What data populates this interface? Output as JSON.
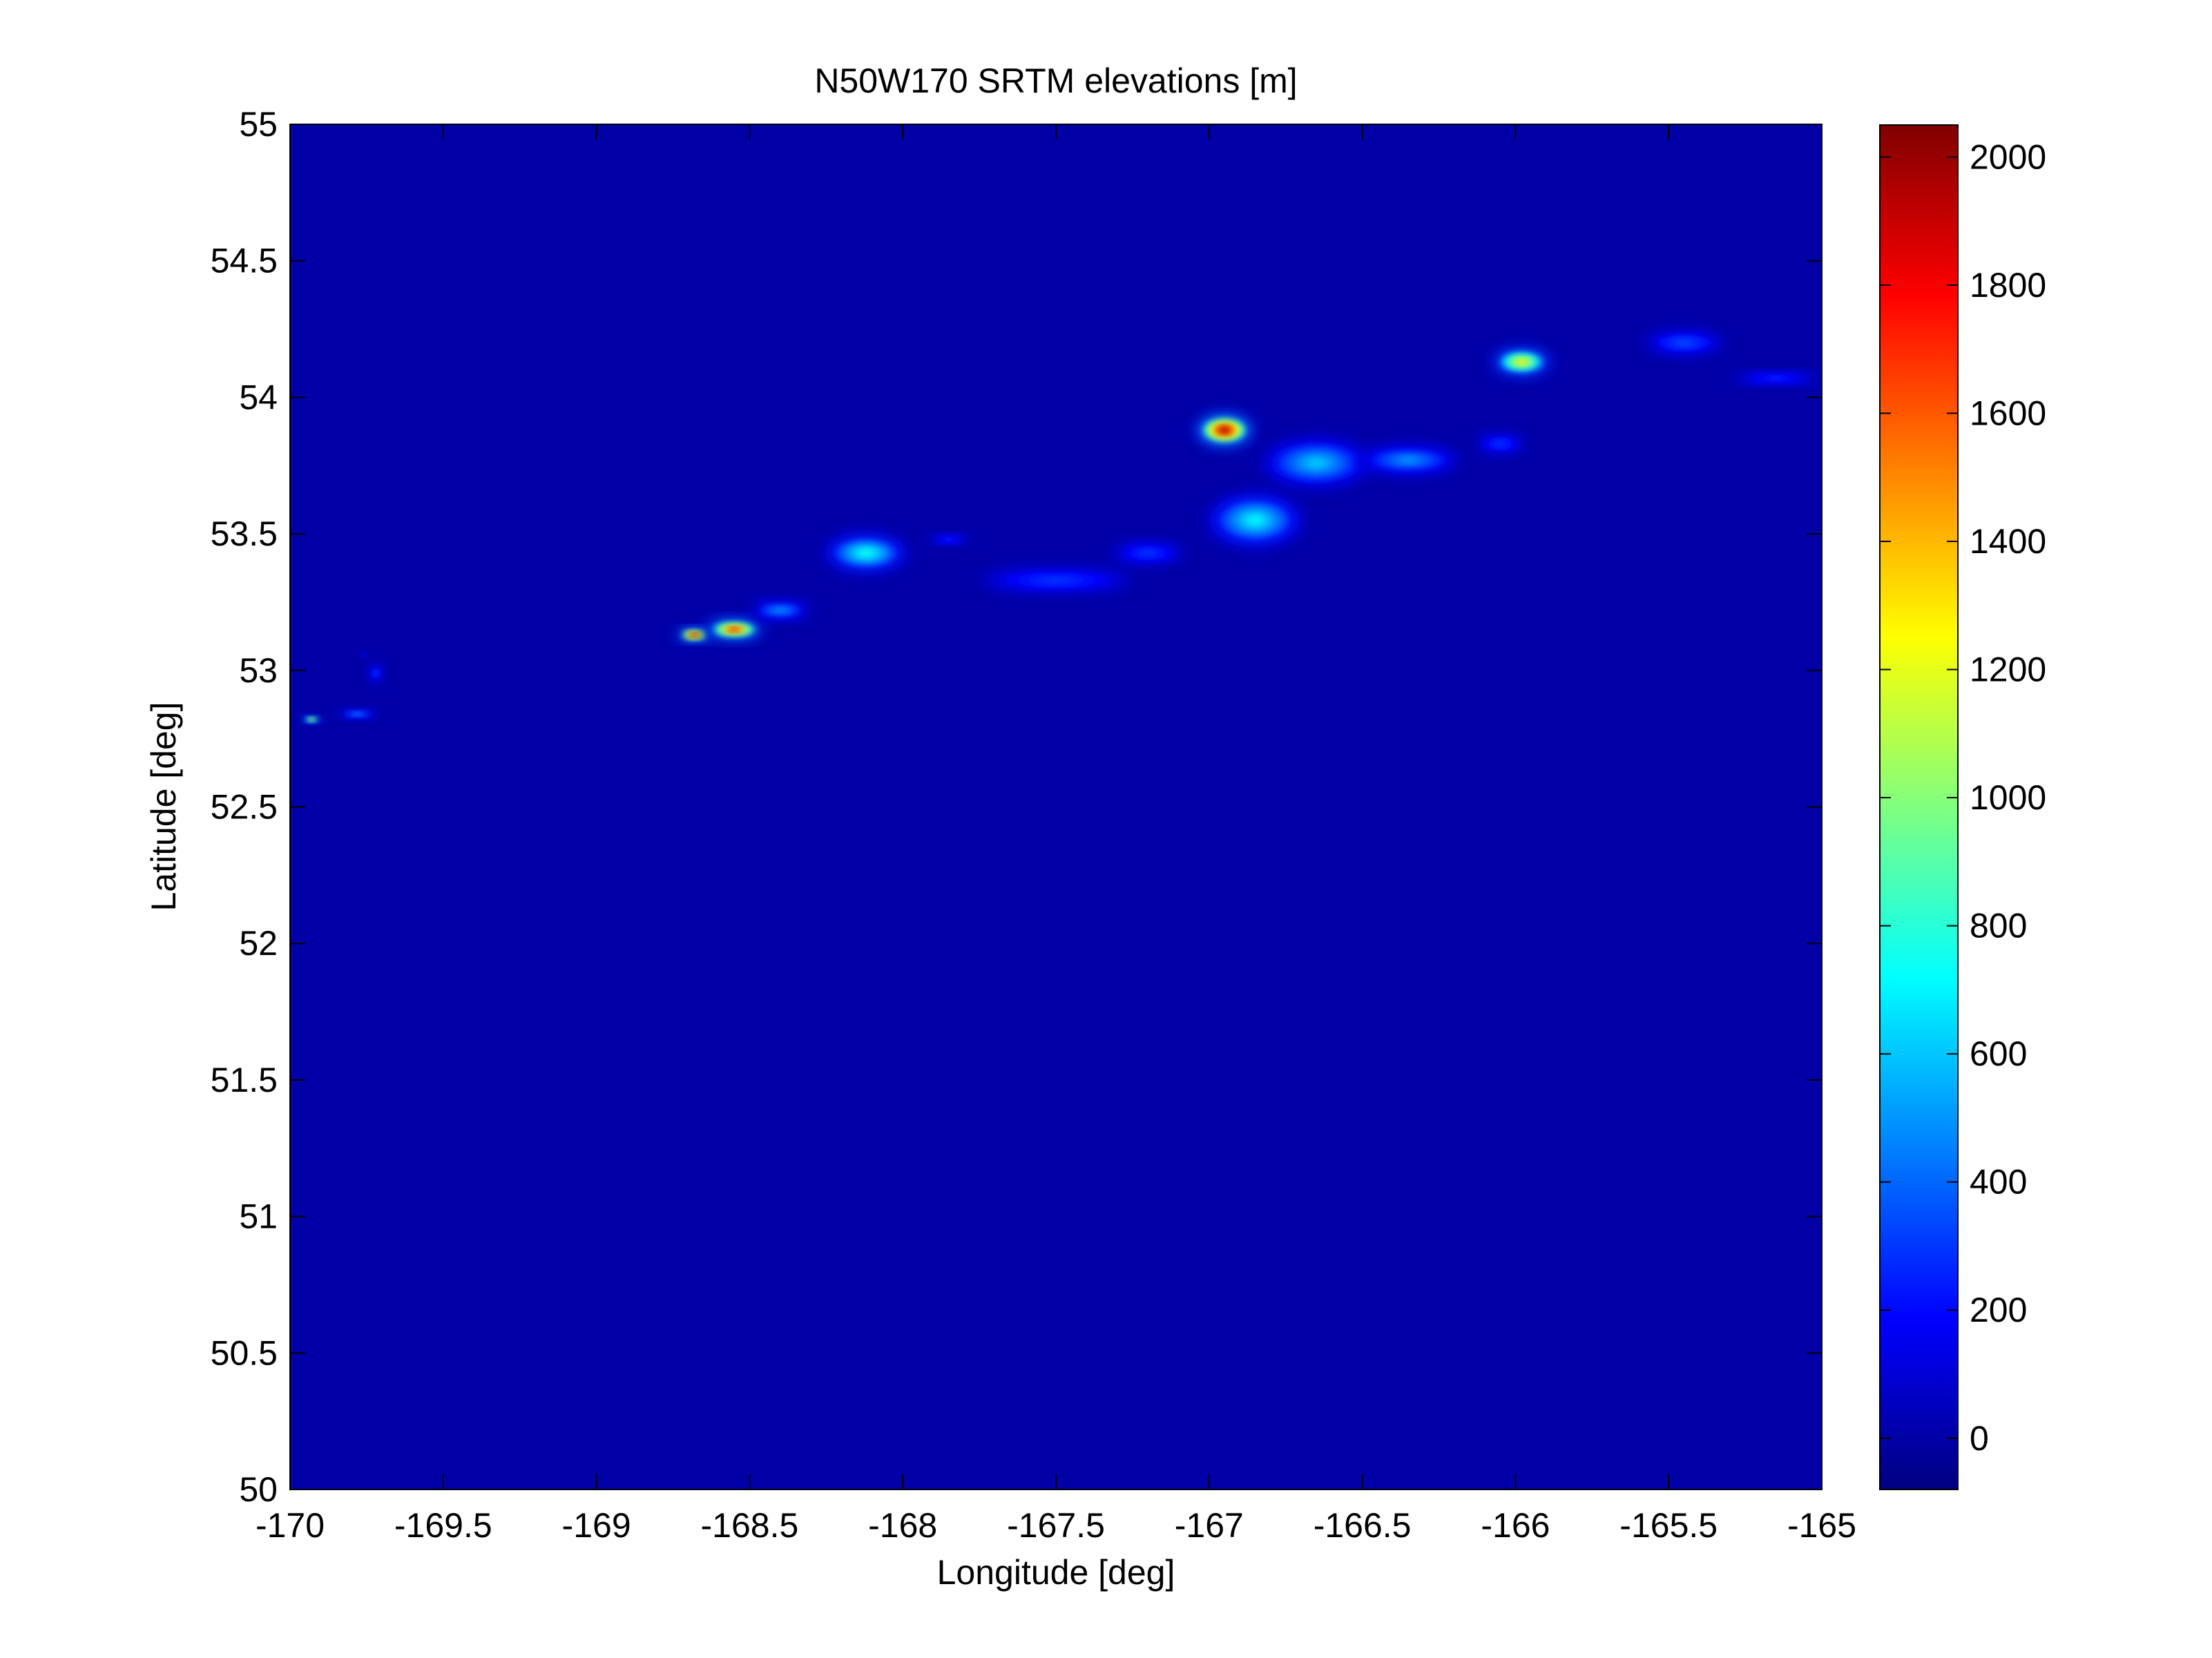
{
  "chart_data": {
    "type": "heatmap",
    "title": "N50W170 SRTM elevations [m]",
    "xlabel": "Longitude [deg]",
    "ylabel": "Latitude [deg]",
    "xlim": [
      -170,
      -165
    ],
    "ylim": [
      50,
      55
    ],
    "x_ticks": [
      -170,
      -169.5,
      -169,
      -168.5,
      -168,
      -167.5,
      -167,
      -166.5,
      -166,
      -165.5,
      -165
    ],
    "x_tick_labels": [
      "-170",
      "-169.5",
      "-169",
      "-168.5",
      "-168",
      "-167.5",
      "-167",
      "-166.5",
      "-166",
      "-165.5",
      "-165"
    ],
    "y_ticks": [
      50,
      50.5,
      51,
      51.5,
      52,
      52.5,
      53,
      53.5,
      54,
      54.5,
      55
    ],
    "y_tick_labels": [
      "50",
      "50.5",
      "51",
      "51.5",
      "52",
      "52.5",
      "53",
      "53.5",
      "54",
      "54.5",
      "55"
    ],
    "colorbar": {
      "colormap": "jet",
      "range": [
        -80,
        2050
      ],
      "ticks": [
        0,
        200,
        400,
        600,
        800,
        1000,
        1200,
        1400,
        1600,
        1800,
        2000
      ],
      "tick_labels": [
        "0",
        "200",
        "400",
        "600",
        "800",
        "1000",
        "1200",
        "1400",
        "1600",
        "1800",
        "2000"
      ],
      "position": "right"
    },
    "background_value": 0,
    "features": [
      {
        "lon": -169.93,
        "lat": 52.82,
        "peak_elevation": 1300,
        "rx": 0.03,
        "ry": 0.012
      },
      {
        "lon": -169.78,
        "lat": 52.84,
        "peak_elevation": 450,
        "rx": 0.07,
        "ry": 0.014
      },
      {
        "lon": -169.72,
        "lat": 52.99,
        "peak_elevation": 300,
        "rx": 0.02,
        "ry": 0.03
      },
      {
        "lon": -169.76,
        "lat": 53.06,
        "peak_elevation": 250,
        "rx": 0.01,
        "ry": 0.01
      },
      {
        "lon": -168.68,
        "lat": 53.13,
        "peak_elevation": 2000,
        "rx": 0.06,
        "ry": 0.022
      },
      {
        "lon": -168.55,
        "lat": 53.15,
        "peak_elevation": 1800,
        "rx": 0.1,
        "ry": 0.035
      },
      {
        "lon": -168.4,
        "lat": 53.22,
        "peak_elevation": 500,
        "rx": 0.1,
        "ry": 0.03
      },
      {
        "lon": -168.12,
        "lat": 53.43,
        "peak_elevation": 750,
        "rx": 0.14,
        "ry": 0.07
      },
      {
        "lon": -167.85,
        "lat": 53.48,
        "peak_elevation": 250,
        "rx": 0.07,
        "ry": 0.015
      },
      {
        "lon": -167.5,
        "lat": 53.33,
        "peak_elevation": 300,
        "rx": 0.25,
        "ry": 0.04
      },
      {
        "lon": -167.2,
        "lat": 53.43,
        "peak_elevation": 300,
        "rx": 0.12,
        "ry": 0.035
      },
      {
        "lon": -166.95,
        "lat": 53.88,
        "peak_elevation": 2000,
        "rx": 0.1,
        "ry": 0.06
      },
      {
        "lon": -166.85,
        "lat": 53.55,
        "peak_elevation": 700,
        "rx": 0.16,
        "ry": 0.1
      },
      {
        "lon": -166.65,
        "lat": 53.76,
        "peak_elevation": 600,
        "rx": 0.18,
        "ry": 0.09
      },
      {
        "lon": -166.35,
        "lat": 53.77,
        "peak_elevation": 500,
        "rx": 0.17,
        "ry": 0.05
      },
      {
        "lon": -166.05,
        "lat": 53.83,
        "peak_elevation": 300,
        "rx": 0.08,
        "ry": 0.03
      },
      {
        "lon": -165.98,
        "lat": 54.13,
        "peak_elevation": 1300,
        "rx": 0.1,
        "ry": 0.05
      },
      {
        "lon": -165.45,
        "lat": 54.2,
        "peak_elevation": 350,
        "rx": 0.13,
        "ry": 0.04
      },
      {
        "lon": -165.15,
        "lat": 54.07,
        "peak_elevation": 250,
        "rx": 0.15,
        "ry": 0.02
      }
    ]
  }
}
